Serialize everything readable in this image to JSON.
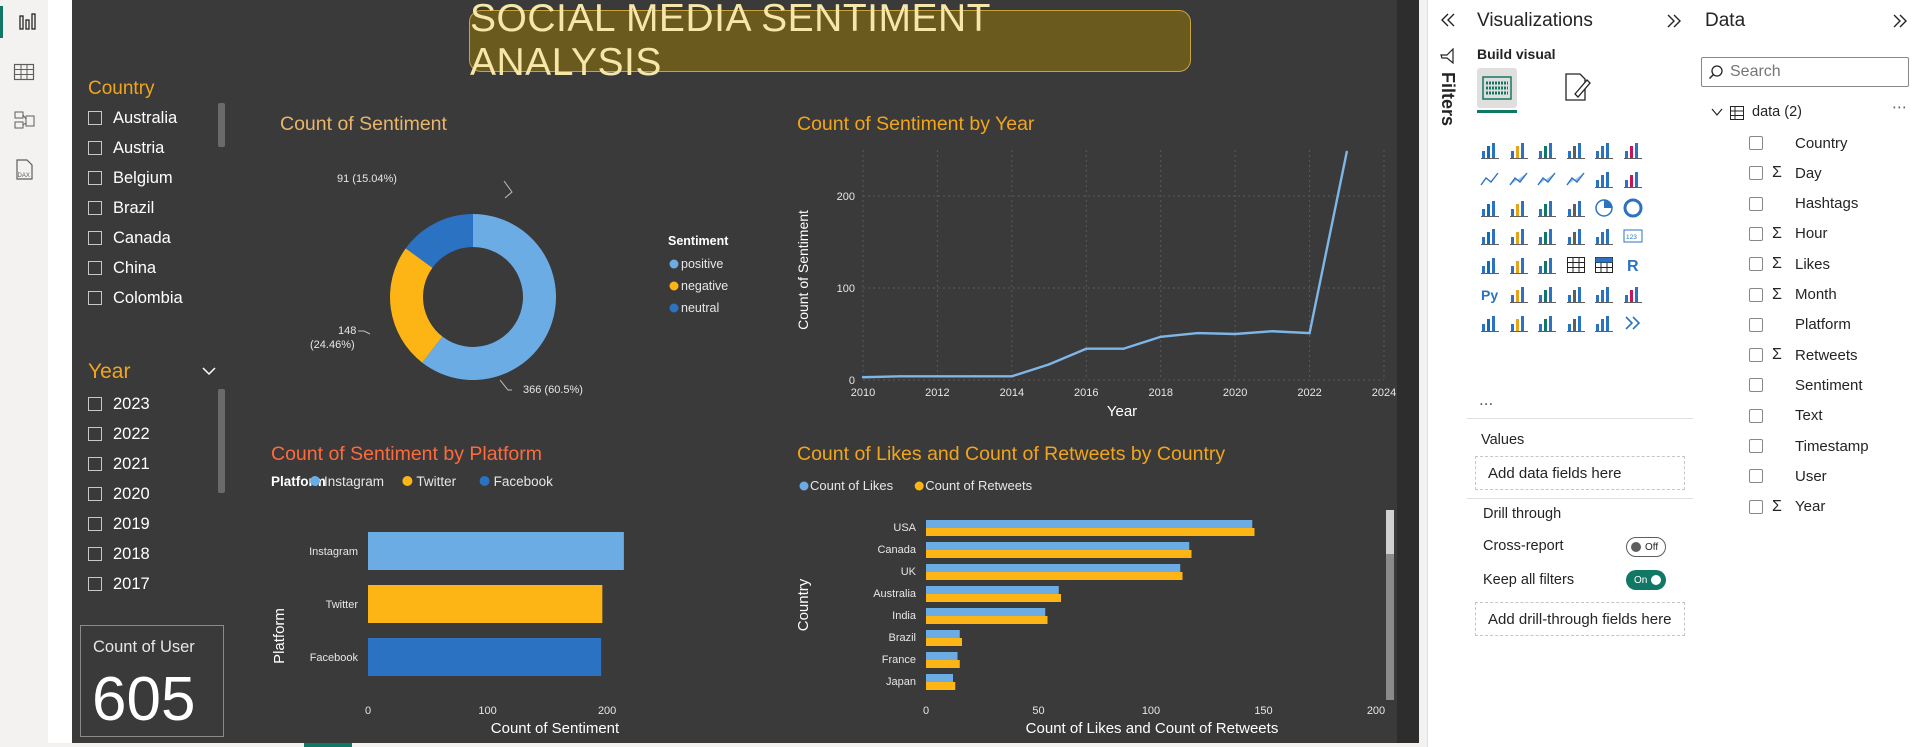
{
  "report": {
    "title": "SOCIAL MEDIA SENTIMENT ANALYSIS",
    "country_slicer": {
      "title": "Country",
      "items": [
        "Australia",
        "Austria",
        "Belgium",
        "Brazil",
        "Canada",
        "China",
        "Colombia"
      ]
    },
    "year_slicer": {
      "title": "Year",
      "items": [
        "2023",
        "2022",
        "2021",
        "2020",
        "2019",
        "2018",
        "2017"
      ]
    },
    "card": {
      "label": "Count of User",
      "value": "605"
    }
  },
  "donut": {
    "title": "Count of Sentiment",
    "legend_title": "Sentiment",
    "labels": {
      "positive": "366 (60.5%)",
      "negative_line1": "148",
      "negative_line2": "(24.46%)",
      "neutral": "91 (15.04%)"
    }
  },
  "line": {
    "title": "Count of Sentiment by Year",
    "xlabel": "Year",
    "ylabel": "Count of Sentiment"
  },
  "bars": {
    "title": "Count of Sentiment by Platform",
    "legend_title": "Platform",
    "xlabel": "Count of Sentiment",
    "ylabel": "Platform"
  },
  "hbars": {
    "title": "Count of Likes and Count of Retweets by Country",
    "xlabel": "Count of Likes and Count of Retweets",
    "ylabel": "Country"
  },
  "chart_data": [
    {
      "type": "pie",
      "title": "Count of Sentiment",
      "categories": [
        "positive",
        "negative",
        "neutral"
      ],
      "values": [
        366,
        148,
        91
      ],
      "colors": [
        "#6cace4",
        "#fdb515",
        "#2b73c2"
      ],
      "legend": "right"
    },
    {
      "type": "line",
      "title": "Count of Sentiment by Year",
      "xlabel": "Year",
      "ylabel": "Count of Sentiment",
      "x": [
        2010,
        2011,
        2012,
        2013,
        2014,
        2015,
        2016,
        2017,
        2018,
        2019,
        2020,
        2021,
        2022,
        2023
      ],
      "y": [
        3,
        4,
        4,
        4,
        4,
        17,
        34,
        34,
        47,
        51,
        50,
        53,
        51,
        248
      ],
      "xlim": [
        2010,
        2024
      ],
      "ylim": [
        0,
        250
      ],
      "xticks": [
        2010,
        2012,
        2014,
        2016,
        2018,
        2020,
        2022,
        2024
      ],
      "yticks": [
        0,
        100,
        200
      ],
      "color": "#7fb6e8"
    },
    {
      "type": "bar",
      "title": "Count of Sentiment by Platform",
      "xlabel": "Count of Sentiment",
      "ylabel": "Platform",
      "categories": [
        "Instagram",
        "Twitter",
        "Facebook"
      ],
      "values": [
        214,
        196,
        195
      ],
      "colors": [
        "#6cace4",
        "#fdb515",
        "#2b73c2"
      ],
      "xlim": [
        0,
        230
      ],
      "xticks": [
        0,
        100,
        200
      ],
      "legend": "top-left"
    },
    {
      "type": "bar",
      "title": "Count of Likes and Count of Retweets by Country",
      "xlabel": "Count of Likes and Count of Retweets",
      "ylabel": "Country",
      "categories": [
        "USA",
        "Canada",
        "UK",
        "Australia",
        "India",
        "Brazil",
        "France",
        "Japan"
      ],
      "series": [
        {
          "name": "Count of Likes",
          "values": [
            145,
            117,
            113,
            59,
            53,
            15,
            14,
            12
          ],
          "color": "#6cace4"
        },
        {
          "name": "Count of Retweets",
          "values": [
            146,
            118,
            114,
            60,
            54,
            16,
            15,
            13
          ],
          "color": "#fdb515"
        }
      ],
      "xlim": [
        0,
        200
      ],
      "xticks": [
        0,
        50,
        100,
        150,
        200
      ],
      "legend": "top-left"
    }
  ],
  "filters": {
    "label": "Filters"
  },
  "viz_pane": {
    "title": "Visualizations",
    "build_visual": "Build visual",
    "more": "...",
    "values_label": "Values",
    "values_placeholder": "Add data fields here",
    "drill_through": "Drill through",
    "cross_report": "Cross-report",
    "cross_report_state": "Off",
    "keep_all_filters": "Keep all filters",
    "keep_all_filters_state": "On",
    "drill_placeholder": "Add drill-through fields here"
  },
  "data_pane": {
    "title": "Data",
    "search_placeholder": "Search",
    "table": "data (2)",
    "fields": [
      {
        "name": "Country",
        "sum": false
      },
      {
        "name": "Day",
        "sum": true
      },
      {
        "name": "Hashtags",
        "sum": false
      },
      {
        "name": "Hour",
        "sum": true
      },
      {
        "name": "Likes",
        "sum": true
      },
      {
        "name": "Month",
        "sum": true
      },
      {
        "name": "Platform",
        "sum": false
      },
      {
        "name": "Retweets",
        "sum": true
      },
      {
        "name": "Sentiment",
        "sum": false
      },
      {
        "name": "Text",
        "sum": false
      },
      {
        "name": "Timestamp",
        "sum": false
      },
      {
        "name": "User",
        "sum": false
      },
      {
        "name": "Year",
        "sum": true
      }
    ]
  }
}
